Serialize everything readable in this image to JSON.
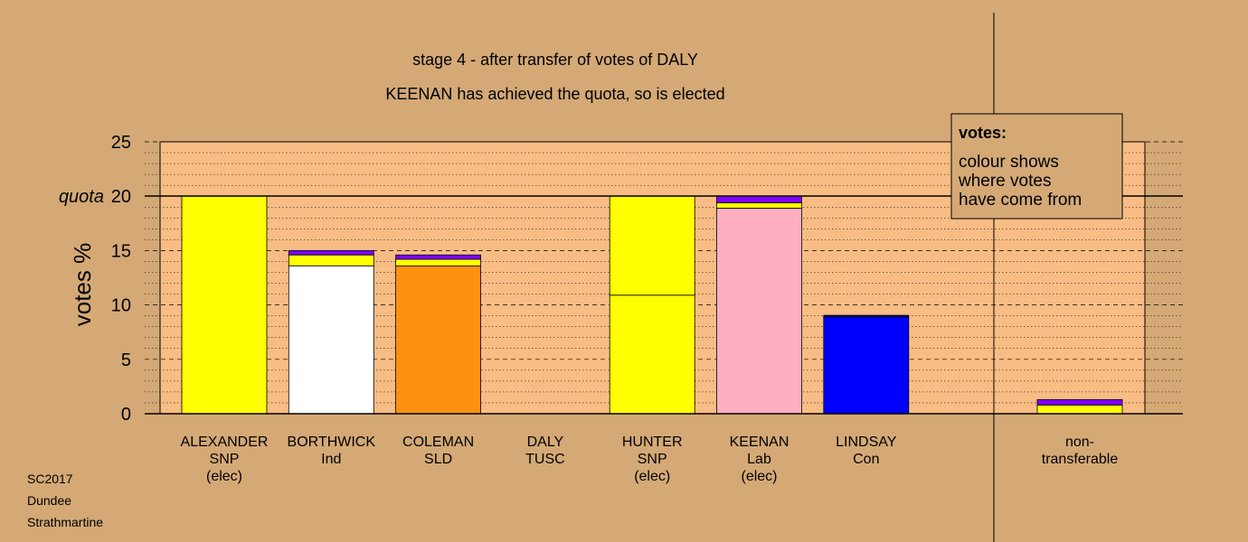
{
  "chart_data": {
    "type": "bar",
    "title": "stage 4 - after transfer of votes of DALY",
    "subtitle": "KEENAN has achieved the quota, so is elected",
    "ylabel": "votes %",
    "ylim": [
      0,
      25
    ],
    "yticks": [
      0,
      5,
      10,
      15,
      20,
      25
    ],
    "quota": 20,
    "quota_label": "quota",
    "candidates": [
      {
        "name": "ALEXANDER",
        "party": "SNP",
        "note": "(elec)",
        "segments": [
          {
            "value": 20,
            "color": "#ffff00"
          }
        ]
      },
      {
        "name": "BORTHWICK",
        "party": "Ind",
        "note": "",
        "segments": [
          {
            "value": 13.6,
            "color": "#ffffff"
          },
          {
            "value": 1.0,
            "color": "#ffff00"
          },
          {
            "value": 0.4,
            "color": "#8000ff"
          }
        ]
      },
      {
        "name": "COLEMAN",
        "party": "SLD",
        "note": "",
        "segments": [
          {
            "value": 13.6,
            "color": "#ff9010"
          },
          {
            "value": 0.6,
            "color": "#ffff00"
          },
          {
            "value": 0.4,
            "color": "#8000ff"
          }
        ]
      },
      {
        "name": "DALY",
        "party": "TUSC",
        "note": "",
        "segments": []
      },
      {
        "name": "HUNTER",
        "party": "SNP",
        "note": "(elec)",
        "segments": [
          {
            "value": 10.9,
            "color": "#ffff00"
          },
          {
            "value": 9.1,
            "color": "#ffff00"
          }
        ]
      },
      {
        "name": "KEENAN",
        "party": "Lab",
        "note": "(elec)",
        "segments": [
          {
            "value": 18.9,
            "color": "#ffb0c0"
          },
          {
            "value": 0.5,
            "color": "#ffff00"
          },
          {
            "value": 0.6,
            "color": "#8000ff"
          }
        ]
      },
      {
        "name": "LINDSAY",
        "party": "Con",
        "note": "",
        "segments": [
          {
            "value": 8.9,
            "color": "#0000ff"
          },
          {
            "value": 0.15,
            "color": "#000080"
          }
        ]
      }
    ],
    "nontransferable": {
      "label_line1": "non-",
      "label_line2": "transferable",
      "segments": [
        {
          "value": 0.8,
          "color": "#ffff00"
        },
        {
          "value": 0.5,
          "color": "#8000ff"
        }
      ]
    },
    "legend": {
      "title": "votes:",
      "lines": [
        "colour shows",
        "where votes",
        "have come from"
      ]
    }
  },
  "footer": {
    "line1": "SC2017",
    "line2": "Dundee",
    "line3": "Strathmartine"
  },
  "colors": {
    "background": "#d4a976",
    "plot_area": "#f8bd84",
    "legend_box": "#d4a976"
  }
}
